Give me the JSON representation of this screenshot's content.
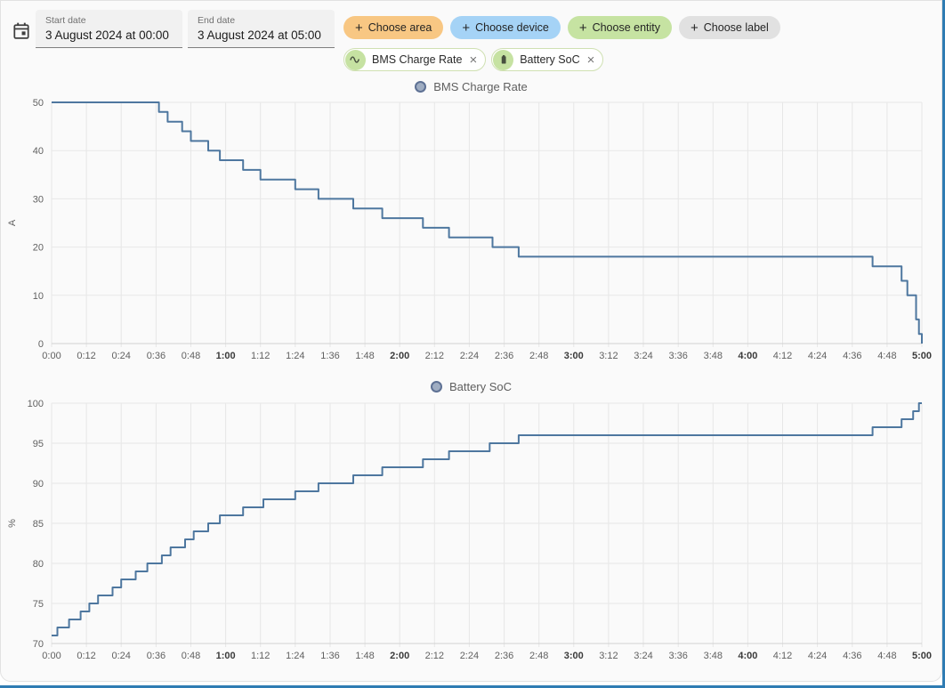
{
  "header": {
    "start_date": {
      "label": "Start date",
      "value": "3 August 2024 at 00:00"
    },
    "end_date": {
      "label": "End date",
      "value": "3 August 2024 at 05:00"
    },
    "plus_glyph": "+",
    "close_glyph": "×",
    "buttons": [
      {
        "label": "Choose area",
        "bg": "#f8c783"
      },
      {
        "label": "Choose device",
        "bg": "#a5d3f6"
      },
      {
        "label": "Choose entity",
        "bg": "#c6e3a2"
      },
      {
        "label": "Choose label",
        "bg": "#e1e1e1"
      }
    ],
    "chips": [
      {
        "label": "BMS Charge Rate",
        "icon": "sine-wave-icon"
      },
      {
        "label": "Battery SoC",
        "icon": "battery-icon"
      }
    ]
  },
  "chart_data": [
    {
      "type": "line",
      "step": true,
      "title": "BMS Charge Rate",
      "ylabel": "A",
      "ylim": [
        0,
        50
      ],
      "yticks": [
        0,
        10,
        20,
        30,
        40,
        50
      ],
      "xlim": [
        0,
        300
      ],
      "grid": true,
      "legend_position": "top-center",
      "line_color": "#4e779f",
      "legend_marker": {
        "fill": "#9fadc2",
        "stroke": "#5e7194"
      },
      "xticks": [
        {
          "m": 0,
          "label": "0:00"
        },
        {
          "m": 12,
          "label": "0:12"
        },
        {
          "m": 24,
          "label": "0:24"
        },
        {
          "m": 36,
          "label": "0:36"
        },
        {
          "m": 48,
          "label": "0:48"
        },
        {
          "m": 60,
          "label": "1:00",
          "bold": true
        },
        {
          "m": 72,
          "label": "1:12"
        },
        {
          "m": 84,
          "label": "1:24"
        },
        {
          "m": 96,
          "label": "1:36"
        },
        {
          "m": 108,
          "label": "1:48"
        },
        {
          "m": 120,
          "label": "2:00",
          "bold": true
        },
        {
          "m": 132,
          "label": "2:12"
        },
        {
          "m": 144,
          "label": "2:24"
        },
        {
          "m": 156,
          "label": "2:36"
        },
        {
          "m": 168,
          "label": "2:48"
        },
        {
          "m": 180,
          "label": "3:00",
          "bold": true
        },
        {
          "m": 192,
          "label": "3:12"
        },
        {
          "m": 204,
          "label": "3:24"
        },
        {
          "m": 216,
          "label": "3:36"
        },
        {
          "m": 228,
          "label": "3:48"
        },
        {
          "m": 240,
          "label": "4:00",
          "bold": true
        },
        {
          "m": 252,
          "label": "4:12"
        },
        {
          "m": 264,
          "label": "4:24"
        },
        {
          "m": 276,
          "label": "4:36"
        },
        {
          "m": 288,
          "label": "4:48"
        },
        {
          "m": 300,
          "label": "5:00",
          "bold": true
        }
      ],
      "points": [
        [
          0,
          50
        ],
        [
          37,
          48
        ],
        [
          40,
          46
        ],
        [
          45,
          44
        ],
        [
          48,
          42
        ],
        [
          54,
          40
        ],
        [
          58,
          38
        ],
        [
          66,
          36
        ],
        [
          72,
          34
        ],
        [
          84,
          32
        ],
        [
          92,
          30
        ],
        [
          104,
          28
        ],
        [
          114,
          26
        ],
        [
          128,
          24
        ],
        [
          137,
          22
        ],
        [
          152,
          20
        ],
        [
          161,
          18
        ],
        [
          283,
          16
        ],
        [
          293,
          13
        ],
        [
          295,
          10
        ],
        [
          298,
          5
        ],
        [
          299,
          2
        ],
        [
          300,
          0
        ]
      ]
    },
    {
      "type": "line",
      "step": true,
      "title": "Battery SoC",
      "ylabel": "%",
      "ylim": [
        70,
        100
      ],
      "yticks": [
        70,
        75,
        80,
        85,
        90,
        95,
        100
      ],
      "xlim": [
        0,
        300
      ],
      "grid": true,
      "legend_position": "top-center",
      "line_color": "#4e779f",
      "legend_marker": {
        "fill": "#9fadc2",
        "stroke": "#5e7194"
      },
      "xticks": [
        {
          "m": 0,
          "label": "0:00"
        },
        {
          "m": 12,
          "label": "0:12"
        },
        {
          "m": 24,
          "label": "0:24"
        },
        {
          "m": 36,
          "label": "0:36"
        },
        {
          "m": 48,
          "label": "0:48"
        },
        {
          "m": 60,
          "label": "1:00",
          "bold": true
        },
        {
          "m": 72,
          "label": "1:12"
        },
        {
          "m": 84,
          "label": "1:24"
        },
        {
          "m": 96,
          "label": "1:36"
        },
        {
          "m": 108,
          "label": "1:48"
        },
        {
          "m": 120,
          "label": "2:00",
          "bold": true
        },
        {
          "m": 132,
          "label": "2:12"
        },
        {
          "m": 144,
          "label": "2:24"
        },
        {
          "m": 156,
          "label": "2:36"
        },
        {
          "m": 168,
          "label": "2:48"
        },
        {
          "m": 180,
          "label": "3:00",
          "bold": true
        },
        {
          "m": 192,
          "label": "3:12"
        },
        {
          "m": 204,
          "label": "3:24"
        },
        {
          "m": 216,
          "label": "3:36"
        },
        {
          "m": 228,
          "label": "3:48"
        },
        {
          "m": 240,
          "label": "4:00",
          "bold": true
        },
        {
          "m": 252,
          "label": "4:12"
        },
        {
          "m": 264,
          "label": "4:24"
        },
        {
          "m": 276,
          "label": "4:36"
        },
        {
          "m": 288,
          "label": "4:48"
        },
        {
          "m": 300,
          "label": "5:00",
          "bold": true
        }
      ],
      "points": [
        [
          0,
          71
        ],
        [
          2,
          72
        ],
        [
          6,
          73
        ],
        [
          10,
          74
        ],
        [
          13,
          75
        ],
        [
          16,
          76
        ],
        [
          21,
          77
        ],
        [
          24,
          78
        ],
        [
          29,
          79
        ],
        [
          33,
          80
        ],
        [
          38,
          81
        ],
        [
          41,
          82
        ],
        [
          46,
          83
        ],
        [
          49,
          84
        ],
        [
          54,
          85
        ],
        [
          58,
          86
        ],
        [
          66,
          87
        ],
        [
          73,
          88
        ],
        [
          84,
          89
        ],
        [
          92,
          90
        ],
        [
          104,
          91
        ],
        [
          114,
          92
        ],
        [
          128,
          93
        ],
        [
          137,
          94
        ],
        [
          151,
          95
        ],
        [
          161,
          96
        ],
        [
          283,
          97
        ],
        [
          293,
          98
        ],
        [
          297,
          99
        ],
        [
          299,
          100
        ]
      ]
    }
  ]
}
